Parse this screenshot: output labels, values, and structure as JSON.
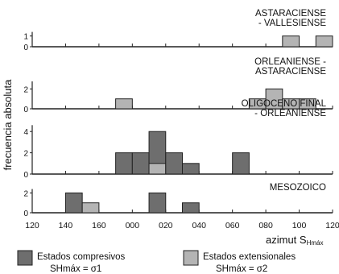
{
  "chart_data": {
    "type": "bar",
    "ylabel": "frecuencia absoluta",
    "xlabel": "azimut S",
    "xlabel_sub": "Hmáx",
    "ticks": [
      "120",
      "140",
      "160",
      "000",
      "020",
      "040",
      "060",
      "080",
      "100",
      "120"
    ],
    "bin_width_deg": 10,
    "panels": [
      {
        "title_lines": [
          "ASTARACIENSE",
          "- VALLESIENSE"
        ],
        "yticks": [
          "0",
          "1"
        ],
        "ymax": 1.5,
        "bars": [
          {
            "azimut": 95,
            "compresivos": 0,
            "extensionales": 1
          },
          {
            "azimut": 115,
            "compresivos": 0,
            "extensionales": 1
          }
        ]
      },
      {
        "title_lines": [
          "ORLEANIENSE -",
          "ASTARACIENSE"
        ],
        "yticks": [
          "0",
          "2"
        ],
        "ymax": 3,
        "bars": [
          {
            "azimut": -5,
            "compresivos": 0,
            "extensionales": 1
          },
          {
            "azimut": 75,
            "compresivos": 0,
            "extensionales": 1
          },
          {
            "azimut": 85,
            "compresivos": 0,
            "extensionales": 2
          },
          {
            "azimut": 95,
            "compresivos": 0,
            "extensionales": 1
          },
          {
            "azimut": 105,
            "compresivos": 0,
            "extensionales": 1
          }
        ]
      },
      {
        "title_lines": [
          "OLIGOCENO FINAL",
          "- ORLEANIENSE"
        ],
        "yticks": [
          "0",
          "2",
          "4"
        ],
        "ymax": 5,
        "bars": [
          {
            "azimut": -5,
            "compresivos": 2,
            "extensionales": 0
          },
          {
            "azimut": 5,
            "compresivos": 2,
            "extensionales": 0
          },
          {
            "azimut": 15,
            "compresivos": 4,
            "extensionales": 1
          },
          {
            "azimut": 25,
            "compresivos": 2,
            "extensionales": 0
          },
          {
            "azimut": 35,
            "compresivos": 1,
            "extensionales": 0
          },
          {
            "azimut": 65,
            "compresivos": 2,
            "extensionales": 0
          }
        ]
      },
      {
        "title_lines": [
          "MESOZOICO"
        ],
        "yticks": [
          "0",
          "2"
        ],
        "ymax": 2.6,
        "bars": [
          {
            "azimut": -35,
            "compresivos": 2,
            "extensionales": 0
          },
          {
            "azimut": -25,
            "compresivos": 0,
            "extensionales": 1
          },
          {
            "azimut": 15,
            "compresivos": 2,
            "extensionales": 0
          },
          {
            "azimut": 35,
            "compresivos": 1,
            "extensionales": 0
          }
        ]
      }
    ],
    "legend": [
      {
        "label": "Estados compresivos",
        "formula": "SHmáx = σ1",
        "color": "#6e6e6e"
      },
      {
        "label": "Estados extensionales",
        "formula": "SHmáx = σ2",
        "color": "#b4b4b4"
      }
    ]
  }
}
